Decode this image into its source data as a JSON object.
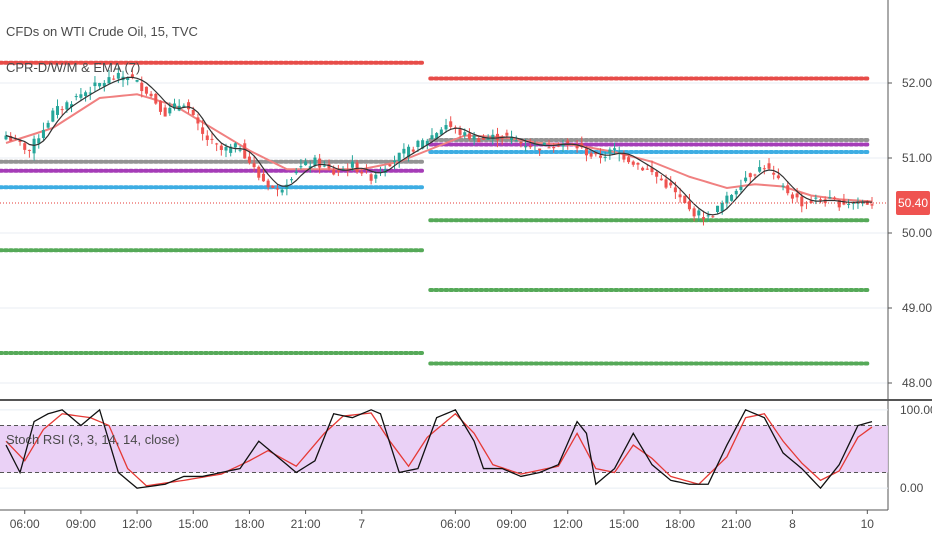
{
  "title": "CFDs on WTI Crude Oil, 15, TVC",
  "indicator_label": "CPR-D/W/M & EMA (7)",
  "stoch_label": "Stoch RSI (3, 3, 14, 14, close)",
  "current_price": "50.40",
  "colors": {
    "up_candle": "#26a69a",
    "down_candle": "#ef5350",
    "ema": "#f08080",
    "price_line": "#e53935",
    "badge": "#ef5350",
    "stoch_k": "#111111",
    "stoch_d": "#e53935",
    "stoch_band": "#e6c9f5",
    "grid": "#e8eef3"
  },
  "chart_data": {
    "type": "line",
    "price_ticks": [
      "52.00",
      "51.00",
      "50.00",
      "49.00",
      "48.00"
    ],
    "price_tick_values": [
      52,
      51,
      50,
      49,
      48
    ],
    "ylim": [
      47.8,
      53.0
    ],
    "stoch_ticks": [
      "100.00",
      "0.00"
    ],
    "stoch_ylim": [
      -10,
      110
    ],
    "stoch_bands": [
      80,
      20
    ],
    "time_ticks": [
      "06:00",
      "09:00",
      "12:00",
      "15:00",
      "18:00",
      "21:00",
      "7",
      "06:00",
      "09:00",
      "12:00",
      "15:00",
      "18:00",
      "21:00",
      "8",
      "10"
    ],
    "time_tick_index": [
      4,
      16,
      28,
      40,
      52,
      64,
      76,
      96,
      108,
      120,
      132,
      144,
      156,
      168,
      184
    ],
    "n_bars": 186,
    "session_split_index": 90,
    "levels_left": [
      {
        "value": 52.27,
        "color": "#e53935"
      },
      {
        "value": 50.95,
        "color": "#888888"
      },
      {
        "value": 50.83,
        "color": "#9c27b0"
      },
      {
        "value": 50.61,
        "color": "#29a5e0"
      },
      {
        "value": 49.77,
        "color": "#43a047"
      },
      {
        "value": 48.4,
        "color": "#43a047"
      }
    ],
    "levels_right": [
      {
        "value": 52.06,
        "color": "#e53935"
      },
      {
        "value": 51.24,
        "color": "#888888"
      },
      {
        "value": 51.18,
        "color": "#9c27b0"
      },
      {
        "value": 51.08,
        "color": "#29a5e0"
      },
      {
        "value": 50.17,
        "color": "#43a047"
      },
      {
        "value": 49.24,
        "color": "#43a047"
      },
      {
        "value": 48.26,
        "color": "#43a047"
      }
    ],
    "price_anchors": [
      [
        0,
        51.3
      ],
      [
        5,
        51.1
      ],
      [
        10,
        51.6
      ],
      [
        16,
        51.85
      ],
      [
        22,
        52.05
      ],
      [
        26,
        52.1
      ],
      [
        30,
        51.9
      ],
      [
        34,
        51.6
      ],
      [
        38,
        51.75
      ],
      [
        42,
        51.3
      ],
      [
        46,
        51.1
      ],
      [
        50,
        51.15
      ],
      [
        54,
        50.75
      ],
      [
        58,
        50.55
      ],
      [
        62,
        50.85
      ],
      [
        66,
        50.95
      ],
      [
        70,
        50.8
      ],
      [
        74,
        50.9
      ],
      [
        78,
        50.75
      ],
      [
        82,
        50.95
      ],
      [
        86,
        51.1
      ],
      [
        90,
        51.25
      ],
      [
        94,
        51.45
      ],
      [
        98,
        51.3
      ],
      [
        102,
        51.25
      ],
      [
        106,
        51.3
      ],
      [
        110,
        51.2
      ],
      [
        114,
        51.15
      ],
      [
        118,
        51.2
      ],
      [
        122,
        51.15
      ],
      [
        126,
        51.0
      ],
      [
        130,
        51.1
      ],
      [
        134,
        50.95
      ],
      [
        138,
        50.8
      ],
      [
        142,
        50.6
      ],
      [
        146,
        50.3
      ],
      [
        150,
        50.2
      ],
      [
        154,
        50.45
      ],
      [
        158,
        50.75
      ],
      [
        162,
        50.9
      ],
      [
        166,
        50.6
      ],
      [
        170,
        50.4
      ],
      [
        174,
        50.45
      ],
      [
        178,
        50.4
      ],
      [
        182,
        50.42
      ],
      [
        185,
        50.4
      ]
    ],
    "ema_anchors": [
      [
        0,
        51.2
      ],
      [
        10,
        51.4
      ],
      [
        20,
        51.8
      ],
      [
        28,
        51.85
      ],
      [
        36,
        51.7
      ],
      [
        44,
        51.4
      ],
      [
        52,
        51.1
      ],
      [
        60,
        50.85
      ],
      [
        68,
        50.85
      ],
      [
        76,
        50.85
      ],
      [
        84,
        50.95
      ],
      [
        90,
        51.1
      ],
      [
        98,
        51.3
      ],
      [
        106,
        51.28
      ],
      [
        114,
        51.2
      ],
      [
        122,
        51.17
      ],
      [
        130,
        51.08
      ],
      [
        138,
        50.95
      ],
      [
        146,
        50.75
      ],
      [
        154,
        50.6
      ],
      [
        160,
        50.65
      ],
      [
        166,
        50.62
      ],
      [
        172,
        50.5
      ],
      [
        178,
        50.45
      ],
      [
        185,
        50.42
      ]
    ],
    "stoch_k_anchors": [
      [
        0,
        55
      ],
      [
        3,
        20
      ],
      [
        6,
        85
      ],
      [
        9,
        95
      ],
      [
        12,
        100
      ],
      [
        16,
        80
      ],
      [
        20,
        100
      ],
      [
        24,
        20
      ],
      [
        28,
        0
      ],
      [
        34,
        5
      ],
      [
        38,
        15
      ],
      [
        42,
        15
      ],
      [
        46,
        20
      ],
      [
        50,
        25
      ],
      [
        54,
        60
      ],
      [
        58,
        40
      ],
      [
        62,
        20
      ],
      [
        66,
        35
      ],
      [
        70,
        95
      ],
      [
        74,
        90
      ],
      [
        78,
        100
      ],
      [
        80,
        95
      ],
      [
        84,
        20
      ],
      [
        88,
        25
      ],
      [
        92,
        90
      ],
      [
        96,
        100
      ],
      [
        100,
        60
      ],
      [
        102,
        25
      ],
      [
        106,
        25
      ],
      [
        110,
        15
      ],
      [
        114,
        20
      ],
      [
        118,
        30
      ],
      [
        122,
        85
      ],
      [
        124,
        70
      ],
      [
        126,
        5
      ],
      [
        130,
        25
      ],
      [
        134,
        70
      ],
      [
        138,
        30
      ],
      [
        142,
        10
      ],
      [
        146,
        5
      ],
      [
        150,
        5
      ],
      [
        154,
        55
      ],
      [
        158,
        100
      ],
      [
        162,
        90
      ],
      [
        166,
        45
      ],
      [
        170,
        25
      ],
      [
        174,
        0
      ],
      [
        178,
        30
      ],
      [
        182,
        80
      ],
      [
        185,
        85
      ]
    ],
    "stoch_d_anchors": [
      [
        0,
        60
      ],
      [
        4,
        35
      ],
      [
        8,
        75
      ],
      [
        12,
        95
      ],
      [
        18,
        90
      ],
      [
        22,
        80
      ],
      [
        26,
        25
      ],
      [
        30,
        3
      ],
      [
        38,
        10
      ],
      [
        46,
        18
      ],
      [
        52,
        35
      ],
      [
        56,
        48
      ],
      [
        62,
        28
      ],
      [
        68,
        70
      ],
      [
        72,
        92
      ],
      [
        78,
        96
      ],
      [
        82,
        60
      ],
      [
        86,
        28
      ],
      [
        90,
        65
      ],
      [
        96,
        95
      ],
      [
        100,
        70
      ],
      [
        104,
        30
      ],
      [
        110,
        18
      ],
      [
        118,
        28
      ],
      [
        122,
        70
      ],
      [
        126,
        25
      ],
      [
        130,
        20
      ],
      [
        134,
        55
      ],
      [
        138,
        38
      ],
      [
        142,
        15
      ],
      [
        148,
        5
      ],
      [
        154,
        40
      ],
      [
        158,
        90
      ],
      [
        162,
        95
      ],
      [
        166,
        60
      ],
      [
        170,
        32
      ],
      [
        174,
        10
      ],
      [
        178,
        22
      ],
      [
        182,
        65
      ],
      [
        185,
        78
      ]
    ]
  }
}
